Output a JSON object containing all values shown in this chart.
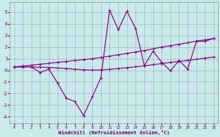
{
  "xlabel": "Windchill (Refroidissement éolien,°C)",
  "background_color": "#c8eae8",
  "grid_color": "#aaaacc",
  "line_color": "#880088",
  "xlim": [
    -0.5,
    23.5
  ],
  "ylim": [
    -4.6,
    5.9
  ],
  "xticks": [
    0,
    1,
    2,
    3,
    4,
    5,
    6,
    7,
    8,
    9,
    10,
    11,
    12,
    13,
    14,
    15,
    16,
    17,
    18,
    19,
    20,
    21,
    22,
    23
  ],
  "yticks": [
    -4,
    -3,
    -2,
    -1,
    0,
    1,
    2,
    3,
    4,
    5
  ],
  "main_y": [
    0.3,
    0.3,
    0.3,
    -0.2,
    0.1,
    -1.1,
    -2.4,
    -2.7,
    -3.9,
    -2.3,
    -0.65,
    5.2,
    3.5,
    5.1,
    3.6,
    0.4,
    1.65,
    0.7,
    -0.05,
    0.85,
    0.1,
    2.5,
    2.5,
    2.75
  ],
  "upper_y": [
    0.28,
    0.36,
    0.44,
    0.52,
    0.6,
    0.68,
    0.76,
    0.84,
    0.92,
    1.0,
    1.1,
    1.22,
    1.34,
    1.46,
    1.58,
    1.7,
    1.85,
    2.0,
    2.12,
    2.24,
    2.38,
    2.52,
    2.62,
    2.75
  ],
  "lower_y": [
    0.28,
    0.28,
    0.29,
    0.26,
    0.24,
    0.2,
    0.15,
    0.09,
    0.04,
    0.02,
    0.02,
    0.08,
    0.15,
    0.22,
    0.3,
    0.38,
    0.48,
    0.58,
    0.67,
    0.76,
    0.85,
    0.95,
    1.05,
    1.15
  ]
}
